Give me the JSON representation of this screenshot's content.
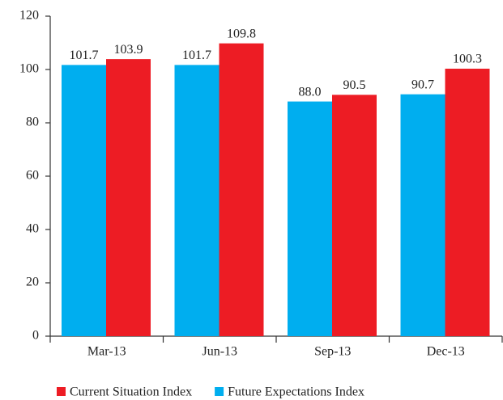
{
  "chart_data": {
    "type": "bar",
    "categories": [
      "Mar-13",
      "Jun-13",
      "Sep-13",
      "Dec-13"
    ],
    "series": [
      {
        "name": "Future Expectations Index",
        "color": "#00aeef",
        "values": [
          101.7,
          101.7,
          88.0,
          90.7
        ],
        "value_labels": [
          "101.7",
          "101.7",
          "88.0",
          "90.7"
        ]
      },
      {
        "name": "Current Situation Index",
        "color": "#ed1c24",
        "values": [
          103.9,
          109.8,
          90.5,
          100.3
        ],
        "value_labels": [
          "103.9",
          "109.8",
          "90.5",
          "100.3"
        ]
      }
    ],
    "ylim": [
      0,
      120
    ],
    "yticks": [
      0,
      20,
      40,
      60,
      80,
      100,
      120
    ],
    "grid": false
  }
}
